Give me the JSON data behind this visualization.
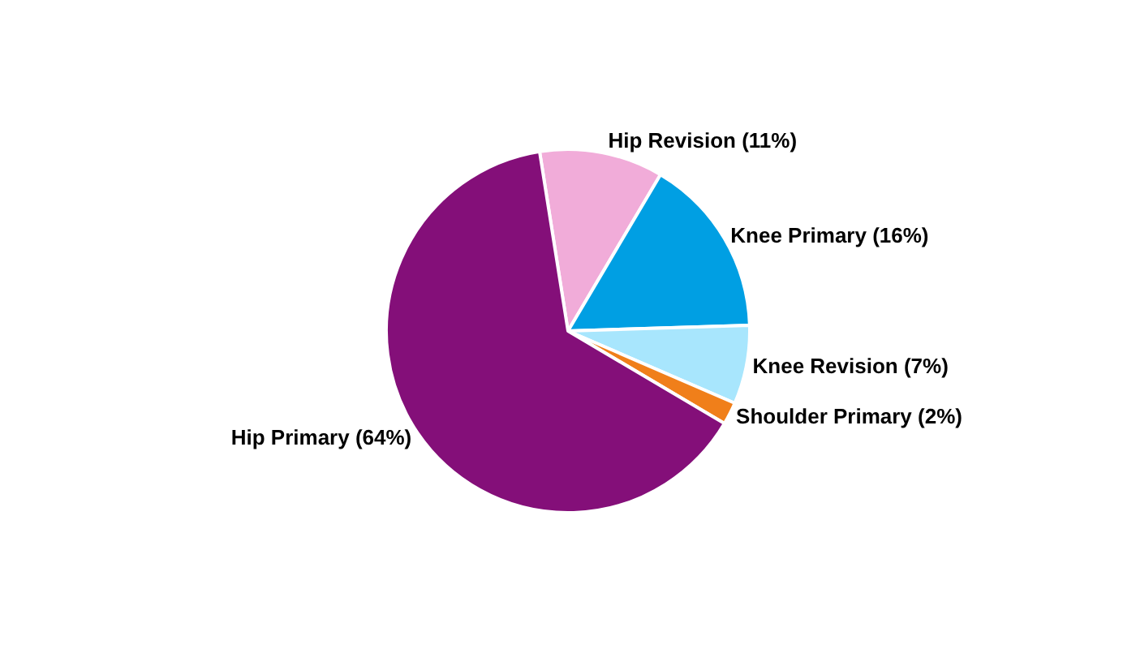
{
  "chart_data": {
    "type": "pie",
    "categories": [
      "Hip Revision (11%)",
      "Knee Primary (16%)",
      "Knee Revision (7%)",
      "Shoulder Primary (2%)",
      "Hip Primary (64%)"
    ],
    "values": [
      11,
      16,
      7,
      2,
      64
    ],
    "colors": [
      "#f1acd9",
      "#009fe3",
      "#a8e6fd",
      "#f07f1a",
      "#840f79"
    ],
    "legend": false
  }
}
